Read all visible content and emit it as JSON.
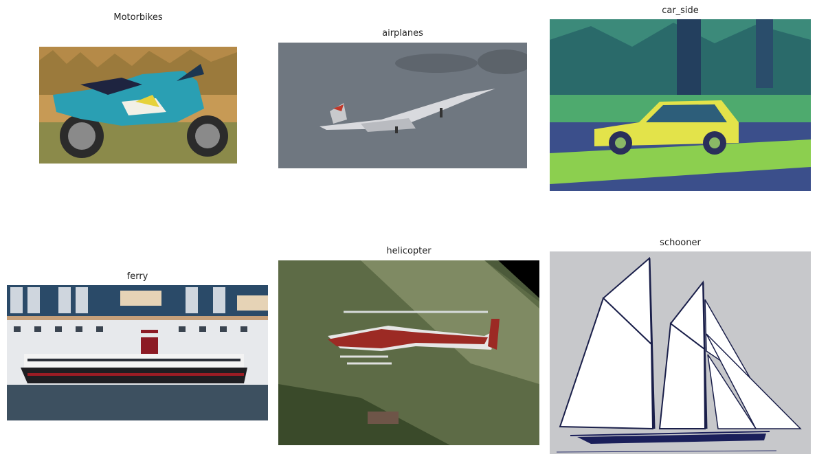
{
  "grid": {
    "images": [
      {
        "label": "Motorbikes",
        "icon": "motorbike-photo"
      },
      {
        "label": "airplanes",
        "icon": "airplane-photo"
      },
      {
        "label": "car_side",
        "icon": "car-side-photo"
      },
      {
        "label": "ferry",
        "icon": "ferry-photo"
      },
      {
        "label": "helicopter",
        "icon": "helicopter-photo"
      },
      {
        "label": "schooner",
        "icon": "schooner-photo"
      }
    ]
  }
}
